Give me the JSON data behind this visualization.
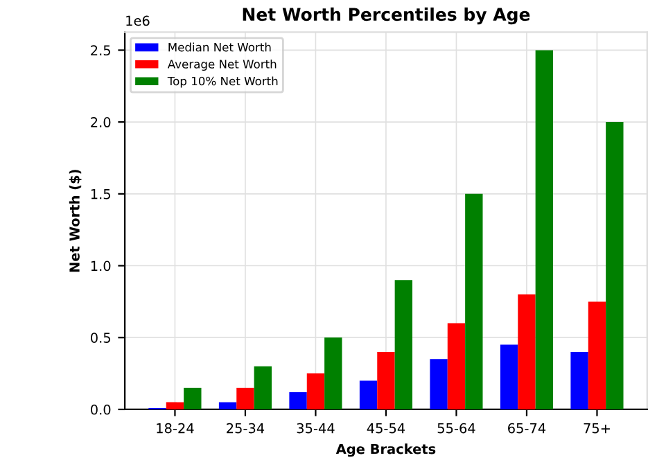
{
  "chart_data": {
    "type": "bar",
    "title": "Net Worth Percentiles by Age",
    "xlabel": "Age Brackets",
    "ylabel": "Net Worth ($)",
    "categories": [
      "18-24",
      "25-34",
      "35-44",
      "45-54",
      "55-64",
      "65-74",
      "75+"
    ],
    "series": [
      {
        "name": "Median Net Worth",
        "color": "#0000ff",
        "values": [
          0.01,
          0.05,
          0.12,
          0.2,
          0.35,
          0.45,
          0.4
        ]
      },
      {
        "name": "Average Net Worth",
        "color": "#ff0000",
        "values": [
          0.05,
          0.15,
          0.25,
          0.4,
          0.6,
          0.8,
          0.75
        ]
      },
      {
        "name": "Top 10% Net Worth",
        "color": "#008000",
        "values": [
          0.15,
          0.3,
          0.5,
          0.9,
          1.5,
          2.5,
          2.0
        ]
      }
    ],
    "ylim": [
      0,
      2.625
    ],
    "yticks": [
      {
        "value": 0,
        "label": "0.0"
      },
      0.5,
      {
        "value": 1,
        "label": "1.0"
      },
      1.5,
      {
        "value": 2,
        "label": "2.0"
      },
      2.5
    ],
    "annotations": [
      "1e6"
    ],
    "grid": true,
    "legend": "top left"
  }
}
